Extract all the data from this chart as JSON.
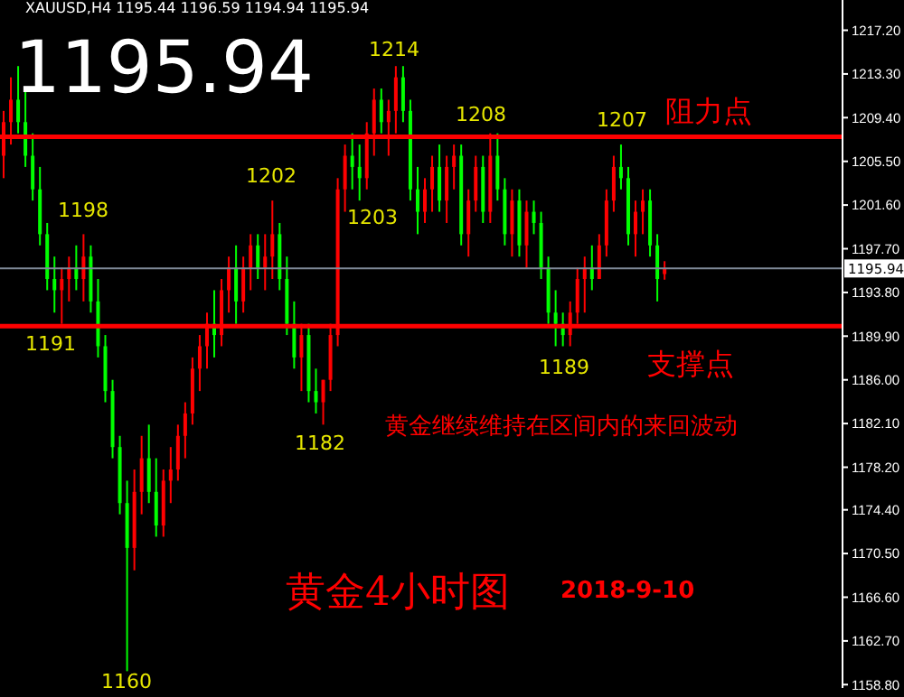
{
  "chart_data": {
    "type": "candlestick",
    "title": "黄金4小时图",
    "subtitle": "2018-9-10",
    "annotations": [
      "XAUUSD,H4 1195.44 1196.59 1194.94 1195.94",
      "1195.94",
      "1214",
      "1208",
      "1207",
      "1198",
      "1202",
      "1203",
      "1191",
      "1182",
      "1189",
      "1160",
      "黄金继续维持在区间内的来回波动"
    ],
    "categories": [
      null,
      null,
      null,
      null,
      null,
      null,
      null,
      null,
      null,
      null,
      null,
      null,
      null,
      null,
      null,
      null,
      null,
      null,
      null,
      null,
      null,
      null,
      null,
      null,
      null,
      null,
      null,
      null,
      null,
      null,
      null,
      null,
      null,
      null,
      null,
      null,
      null,
      null,
      null,
      null,
      null,
      null,
      null,
      null,
      null,
      null,
      null,
      null,
      null,
      null,
      null,
      null,
      null,
      null,
      null,
      null,
      null,
      null,
      null,
      null,
      null,
      null,
      null,
      null,
      null,
      null,
      null,
      null,
      null,
      null,
      null,
      null,
      null,
      null,
      null,
      null,
      null,
      null,
      null,
      null,
      null,
      null,
      null,
      null,
      null,
      null,
      null,
      null,
      null,
      null,
      null,
      null,
      null,
      null,
      null,
      null,
      null,
      null,
      null,
      null,
      null,
      null,
      null,
      null,
      null,
      null,
      null,
      null,
      null,
      null,
      null,
      null,
      null,
      null,
      null,
      null
    ],
    "ohlc": [
      [
        1206,
        1210,
        1204,
        1209
      ],
      [
        1209,
        1213,
        1207,
        1211
      ],
      [
        1211,
        1214,
        1208,
        1209
      ],
      [
        1209,
        1212,
        1205,
        1206
      ],
      [
        1206,
        1208,
        1202,
        1203
      ],
      [
        1203,
        1205,
        1198,
        1199
      ],
      [
        1199,
        1200,
        1194,
        1195
      ],
      [
        1195,
        1197,
        1192,
        1194
      ],
      [
        1194,
        1196,
        1191,
        1195
      ],
      [
        1195,
        1197,
        1193,
        1196
      ],
      [
        1196,
        1198,
        1194,
        1195
      ],
      [
        1195,
        1199,
        1193,
        1197
      ],
      [
        1197,
        1198,
        1192,
        1193
      ],
      [
        1193,
        1195,
        1188,
        1189
      ],
      [
        1189,
        1190,
        1184,
        1185
      ],
      [
        1185,
        1186,
        1179,
        1180
      ],
      [
        1180,
        1181,
        1174,
        1175
      ],
      [
        1175,
        1177,
        1160,
        1171
      ],
      [
        1171,
        1178,
        1169,
        1176
      ],
      [
        1176,
        1181,
        1174,
        1179
      ],
      [
        1179,
        1182,
        1175,
        1176
      ],
      [
        1176,
        1179,
        1172,
        1173
      ],
      [
        1173,
        1178,
        1172,
        1177
      ],
      [
        1177,
        1180,
        1175,
        1178
      ],
      [
        1178,
        1182,
        1177,
        1181
      ],
      [
        1181,
        1184,
        1179,
        1183
      ],
      [
        1183,
        1188,
        1182,
        1187
      ],
      [
        1187,
        1190,
        1185,
        1189
      ],
      [
        1189,
        1192,
        1187,
        1191
      ],
      [
        1191,
        1194,
        1188,
        1190
      ],
      [
        1190,
        1195,
        1189,
        1194
      ],
      [
        1194,
        1197,
        1192,
        1196
      ],
      [
        1196,
        1198,
        1191,
        1193
      ],
      [
        1193,
        1197,
        1192,
        1196
      ],
      [
        1196,
        1199,
        1194,
        1198
      ],
      [
        1198,
        1199,
        1195,
        1196
      ],
      [
        1196,
        1199,
        1194,
        1197
      ],
      [
        1197,
        1202,
        1195,
        1199
      ],
      [
        1199,
        1200,
        1194,
        1195
      ],
      [
        1195,
        1197,
        1190,
        1191
      ],
      [
        1191,
        1193,
        1187,
        1188
      ],
      [
        1188,
        1191,
        1185,
        1190
      ],
      [
        1190,
        1191,
        1184,
        1185
      ],
      [
        1185,
        1187,
        1183,
        1184
      ],
      [
        1184,
        1186,
        1182,
        1186
      ],
      [
        1186,
        1191,
        1185,
        1190
      ],
      [
        1190,
        1204,
        1189,
        1203
      ],
      [
        1203,
        1207,
        1201,
        1206
      ],
      [
        1206,
        1208,
        1203,
        1205
      ],
      [
        1205,
        1207,
        1202,
        1204
      ],
      [
        1204,
        1209,
        1203,
        1208
      ],
      [
        1208,
        1212,
        1206,
        1211
      ],
      [
        1211,
        1212,
        1208,
        1209
      ],
      [
        1209,
        1211,
        1206,
        1210
      ],
      [
        1210,
        1214,
        1208,
        1213
      ],
      [
        1213,
        1214,
        1209,
        1210
      ],
      [
        1210,
        1211,
        1202,
        1203
      ],
      [
        1203,
        1205,
        1199,
        1201
      ],
      [
        1201,
        1204,
        1200,
        1203
      ],
      [
        1203,
        1206,
        1201,
        1205
      ],
      [
        1205,
        1207,
        1201,
        1202
      ],
      [
        1202,
        1206,
        1200,
        1205
      ],
      [
        1205,
        1207,
        1203,
        1206
      ],
      [
        1206,
        1207,
        1198,
        1199
      ],
      [
        1199,
        1203,
        1197,
        1202
      ],
      [
        1202,
        1206,
        1201,
        1205
      ],
      [
        1205,
        1206,
        1200,
        1201
      ],
      [
        1201,
        1208,
        1200,
        1206
      ],
      [
        1206,
        1208,
        1202,
        1203
      ],
      [
        1203,
        1204,
        1198,
        1199
      ],
      [
        1199,
        1203,
        1197,
        1202
      ],
      [
        1202,
        1203,
        1197,
        1198
      ],
      [
        1198,
        1202,
        1196,
        1201
      ],
      [
        1201,
        1202,
        1199,
        1200
      ],
      [
        1200,
        1201,
        1195,
        1196
      ],
      [
        1196,
        1197,
        1191,
        1192
      ],
      [
        1192,
        1194,
        1189,
        1191
      ],
      [
        1191,
        1192,
        1189,
        1190
      ],
      [
        1190,
        1193,
        1189,
        1192
      ],
      [
        1192,
        1196,
        1191,
        1195
      ],
      [
        1195,
        1197,
        1192,
        1196
      ],
      [
        1196,
        1198,
        1194,
        1195
      ],
      [
        1195,
        1199,
        1195,
        1198
      ],
      [
        1198,
        1203,
        1197,
        1202
      ],
      [
        1202,
        1206,
        1201,
        1205
      ],
      [
        1205,
        1207,
        1203,
        1204
      ],
      [
        1204,
        1205,
        1198,
        1199
      ],
      [
        1199,
        1202,
        1197,
        1201
      ],
      [
        1201,
        1203,
        1199,
        1202
      ],
      [
        1202,
        1203,
        1197,
        1198
      ],
      [
        1198,
        1199,
        1193,
        1195
      ],
      [
        1195.44,
        1196.59,
        1194.94,
        1195.94
      ],
      null,
      null,
      null,
      null,
      null,
      null,
      null,
      null,
      null,
      null,
      null,
      null,
      null,
      null,
      null,
      null,
      null,
      null,
      null,
      null,
      null,
      null,
      null,
      null
    ],
    "colors": [
      "#ff0000",
      "#ff0000",
      "#00ff00",
      "#00ff00",
      "#00ff00",
      "#00ff00",
      "#00ff00",
      "#00ff00",
      "#ff0000",
      "#ff0000",
      "#00ff00",
      "#ff0000",
      "#00ff00",
      "#00ff00",
      "#00ff00",
      "#00ff00",
      "#00ff00",
      "#00ff00",
      "#ff0000",
      "#ff0000",
      "#00ff00",
      "#00ff00",
      "#ff0000",
      "#ff0000",
      "#ff0000",
      "#ff0000",
      "#ff0000",
      "#ff0000",
      "#ff0000",
      "#00ff00",
      "#ff0000",
      "#ff0000",
      "#00ff00",
      "#ff0000",
      "#ff0000",
      "#00ff00",
      "#ff0000",
      "#ff0000",
      "#00ff00",
      "#00ff00",
      "#00ff00",
      "#ff0000",
      "#00ff00",
      "#00ff00",
      "#ff0000",
      "#ff0000",
      "#ff0000",
      "#ff0000",
      "#00ff00",
      "#00ff00",
      "#ff0000",
      "#ff0000",
      "#00ff00",
      "#ff0000",
      "#ff0000",
      "#00ff00",
      "#00ff00",
      "#00ff00",
      "#ff0000",
      "#ff0000",
      "#00ff00",
      "#ff0000",
      "#ff0000",
      "#00ff00",
      "#ff0000",
      "#ff0000",
      "#00ff00",
      "#ff0000",
      "#00ff00",
      "#00ff00",
      "#ff0000",
      "#00ff00",
      "#ff0000",
      "#00ff00",
      "#00ff00",
      "#00ff00",
      "#00ff00",
      "#00ff00",
      "#ff0000",
      "#ff0000",
      "#ff0000",
      "#00ff00",
      "#ff0000",
      "#ff0000",
      "#ff0000",
      "#00ff00",
      "#00ff00",
      "#ff0000",
      "#ff0000",
      "#00ff00",
      "#00ff00",
      "#ff0000",
      null,
      null,
      null,
      null,
      null,
      null,
      null,
      null,
      null,
      null,
      null,
      null,
      null,
      null,
      null,
      null,
      null,
      null,
      null,
      null,
      null,
      null,
      null,
      null
    ],
    "ylim": [
      1158.5,
      1219.9
    ],
    "yticks": [
      {
        "value": 1158.8,
        "label": "1158.80"
      },
      {
        "value": 1162.7,
        "label": "1162.70"
      },
      {
        "value": 1166.6,
        "label": "1166.60"
      },
      {
        "value": 1170.5,
        "label": "1170.50"
      },
      {
        "value": 1174.4,
        "label": "1174.40"
      },
      {
        "value": 1178.2,
        "label": "1178.20"
      },
      {
        "value": 1182.1,
        "label": "1182.10"
      },
      {
        "value": 1186,
        "label": "1186.00"
      },
      {
        "value": 1189.9,
        "label": "1189.90"
      },
      {
        "value": 1193.8,
        "label": "1193.80"
      },
      {
        "value": 1197.7,
        "label": "1197.70"
      },
      {
        "value": 1201.6,
        "label": "1201.60"
      },
      {
        "value": 1205.5,
        "label": "1205.50"
      },
      {
        "value": 1209.4,
        "label": "1209.40"
      },
      {
        "value": 1213.3,
        "label": "1213.30"
      },
      {
        "value": 1217.2,
        "label": "1217.20"
      }
    ],
    "ref_lines": [
      {
        "axis": "y",
        "value": 1195.94,
        "label": "1195.94",
        "color": "#7f8a99"
      },
      {
        "axis": "y",
        "value": 1207.7,
        "label": "阻力点",
        "color": "#ff0000"
      },
      {
        "axis": "y",
        "value": 1190.8,
        "label": "支撑点",
        "color": "#ff0000"
      }
    ],
    "tick_labels": "y"
  }
}
